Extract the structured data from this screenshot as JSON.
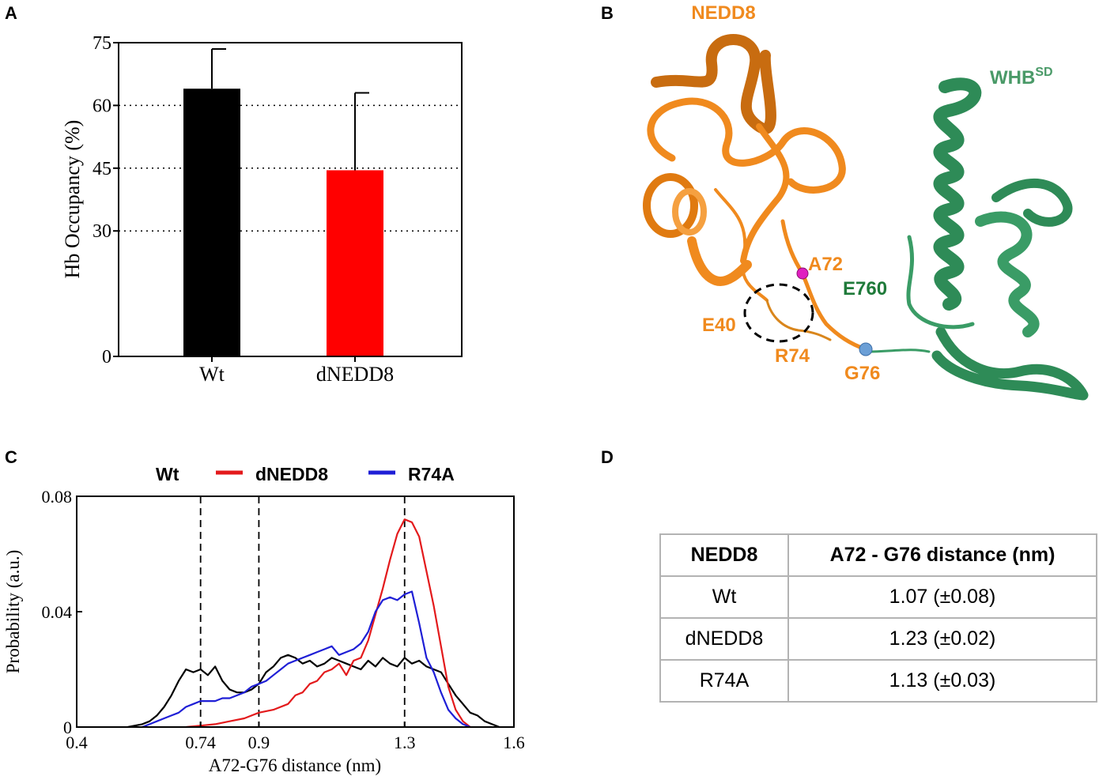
{
  "panels": {
    "a": "A",
    "b": "B",
    "c": "C",
    "d": "D"
  },
  "chart_data": [
    {
      "type": "bar",
      "categories": [
        "Wt",
        "dNEDD8"
      ],
      "values": [
        64,
        44.5
      ],
      "errors": [
        9.5,
        18.5
      ],
      "colors": [
        "#000000",
        "#ff0000"
      ],
      "ylabel": "Hb Occupancy (%)",
      "yticks": [
        0,
        30,
        45,
        60,
        75
      ],
      "ylim": [
        0,
        75
      ],
      "grid": "dotted horizontal at 30, 45, 60"
    },
    {
      "type": "line",
      "xlabel": "A72-G76 distance (nm)",
      "ylabel": "Probability (a.u.)",
      "xlim": [
        0.4,
        1.6
      ],
      "ylim": [
        0,
        0.08
      ],
      "xticks": [
        "0.4",
        "0.74",
        "0.9",
        "1.3",
        "1.6"
      ],
      "yticks": [
        "0",
        "0.04",
        "0.08"
      ],
      "vlines": [
        0.74,
        0.9,
        1.3
      ],
      "legend_position": "top",
      "series": [
        {
          "name": "Wt",
          "color": "#000000",
          "x": [
            0.54,
            0.56,
            0.58,
            0.6,
            0.62,
            0.64,
            0.66,
            0.68,
            0.7,
            0.72,
            0.74,
            0.76,
            0.78,
            0.8,
            0.82,
            0.84,
            0.86,
            0.88,
            0.9,
            0.92,
            0.94,
            0.96,
            0.98,
            1.0,
            1.02,
            1.04,
            1.06,
            1.08,
            1.1,
            1.12,
            1.14,
            1.16,
            1.18,
            1.2,
            1.22,
            1.24,
            1.26,
            1.28,
            1.3,
            1.32,
            1.34,
            1.36,
            1.38,
            1.4,
            1.42,
            1.44,
            1.46,
            1.48,
            1.5,
            1.52,
            1.54,
            1.56
          ],
          "y": [
            0,
            0.0005,
            0.001,
            0.002,
            0.004,
            0.007,
            0.011,
            0.016,
            0.02,
            0.019,
            0.02,
            0.018,
            0.021,
            0.016,
            0.013,
            0.012,
            0.012,
            0.013,
            0.015,
            0.019,
            0.021,
            0.024,
            0.025,
            0.024,
            0.022,
            0.023,
            0.021,
            0.022,
            0.024,
            0.023,
            0.022,
            0.021,
            0.02,
            0.023,
            0.021,
            0.024,
            0.022,
            0.021,
            0.024,
            0.022,
            0.023,
            0.021,
            0.02,
            0.019,
            0.015,
            0.011,
            0.008,
            0.005,
            0.004,
            0.002,
            0.001,
            0
          ]
        },
        {
          "name": "dNEDD8",
          "color": "#e31a1c",
          "x": [
            0.7,
            0.74,
            0.78,
            0.82,
            0.86,
            0.88,
            0.9,
            0.94,
            0.98,
            1.0,
            1.02,
            1.04,
            1.06,
            1.08,
            1.1,
            1.12,
            1.14,
            1.16,
            1.18,
            1.2,
            1.22,
            1.24,
            1.26,
            1.28,
            1.3,
            1.32,
            1.34,
            1.36,
            1.38,
            1.4,
            1.42,
            1.44,
            1.46,
            1.48
          ],
          "y": [
            0,
            0.0005,
            0.001,
            0.002,
            0.003,
            0.004,
            0.005,
            0.006,
            0.008,
            0.011,
            0.012,
            0.015,
            0.016,
            0.019,
            0.02,
            0.022,
            0.018,
            0.023,
            0.024,
            0.03,
            0.039,
            0.048,
            0.058,
            0.067,
            0.072,
            0.071,
            0.066,
            0.054,
            0.042,
            0.028,
            0.014,
            0.006,
            0.002,
            0
          ]
        },
        {
          "name": "R74A",
          "color": "#1f1fd6",
          "x": [
            0.58,
            0.6,
            0.62,
            0.64,
            0.66,
            0.68,
            0.7,
            0.72,
            0.74,
            0.76,
            0.78,
            0.8,
            0.82,
            0.84,
            0.86,
            0.88,
            0.9,
            0.92,
            0.94,
            0.96,
            0.98,
            1.0,
            1.02,
            1.04,
            1.06,
            1.08,
            1.1,
            1.12,
            1.14,
            1.16,
            1.18,
            1.2,
            1.22,
            1.24,
            1.26,
            1.28,
            1.3,
            1.32,
            1.34,
            1.36,
            1.38,
            1.4,
            1.42,
            1.44,
            1.46,
            1.48
          ],
          "y": [
            0,
            0.001,
            0.002,
            0.003,
            0.004,
            0.005,
            0.007,
            0.008,
            0.009,
            0.009,
            0.009,
            0.01,
            0.01,
            0.011,
            0.012,
            0.014,
            0.015,
            0.016,
            0.018,
            0.02,
            0.022,
            0.023,
            0.024,
            0.025,
            0.026,
            0.027,
            0.028,
            0.025,
            0.026,
            0.027,
            0.029,
            0.033,
            0.04,
            0.044,
            0.045,
            0.044,
            0.046,
            0.047,
            0.036,
            0.024,
            0.019,
            0.012,
            0.006,
            0.003,
            0.001,
            0
          ]
        }
      ]
    }
  ],
  "structure": {
    "nedd8_label": "NEDD8",
    "whb_label": "WHB",
    "whb_superscript": "SD",
    "residues": {
      "a72": "A72",
      "e760": "E760",
      "e40": "E40",
      "r74": "R74",
      "g76": "G76"
    },
    "colors": {
      "nedd8": "#f08a1e",
      "whb": "#2e8b57",
      "e760": "#1f7a3a",
      "a72_marker": "#e020c0",
      "g76_marker": "#6b9fd6"
    }
  },
  "table": {
    "headers": [
      "NEDD8",
      "A72 - G76 distance (nm)"
    ],
    "rows": [
      [
        "Wt",
        "1.07 (±0.08)"
      ],
      [
        "dNEDD8",
        "1.23 (±0.02)"
      ],
      [
        "R74A",
        "1.13 (±0.03)"
      ]
    ]
  }
}
